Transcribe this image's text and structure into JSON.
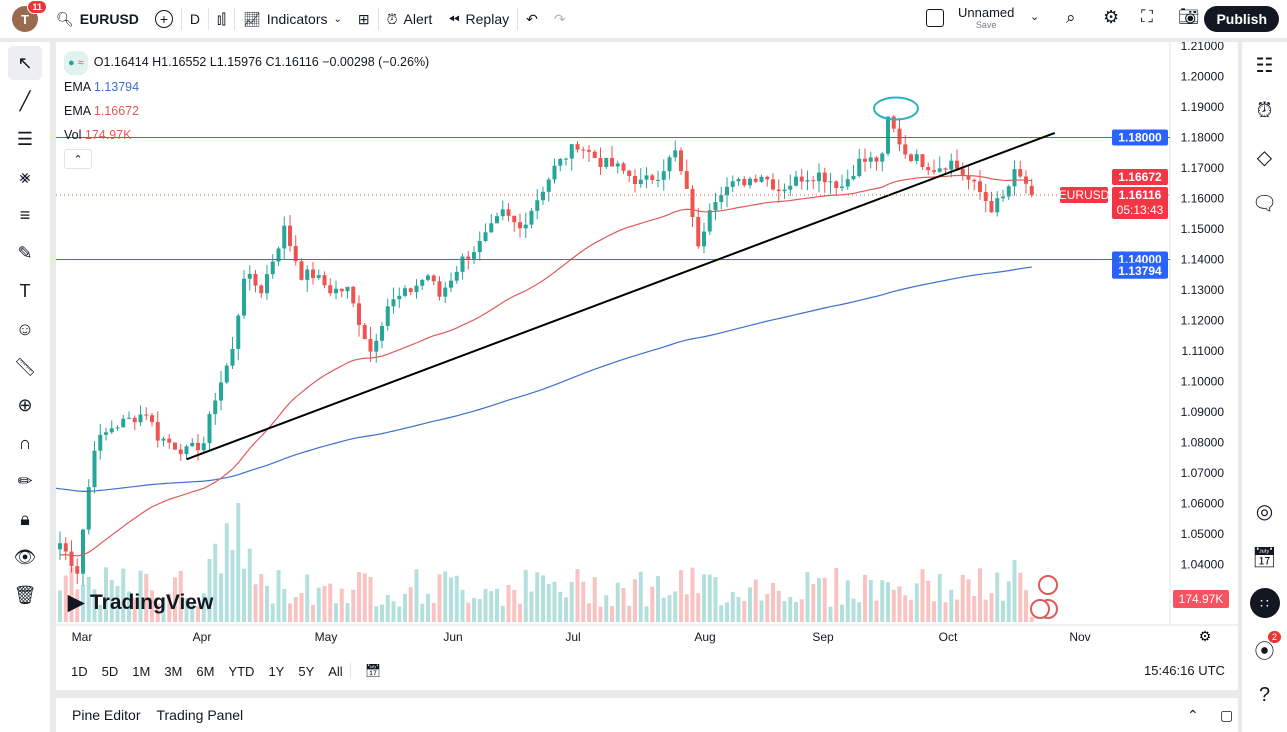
{
  "topbar": {
    "notifications": "11",
    "avatar_letter": "T",
    "symbol": "EURUSD",
    "interval": "D",
    "indicators": "Indicators",
    "alert": "Alert",
    "replay": "Replay",
    "layout_name": "Unnamed",
    "layout_save": "Save",
    "publish": "Publish"
  },
  "legend": {
    "ohlc": "O1.16414 H1.16552 L1.15976 C1.16116 −0.00298 (−0.26%)",
    "ema1_label": "EMA",
    "ema1_value": "1.13794",
    "ema2_label": "EMA",
    "ema2_value": "1.16672",
    "vol_label": "Vol",
    "vol_value": "174.97K"
  },
  "colors": {
    "up": "#26a69a",
    "down": "#ef5350",
    "ema_fast": "#e05a5a",
    "ema_slow": "#3d6fd1",
    "hline": "#3d6fd1",
    "accent": "#2962ff"
  },
  "chart_data": {
    "type": "candlestick",
    "symbol": "EURUSD",
    "y_ticks": [
      "1.21000",
      "1.20000",
      "1.19000",
      "1.18000",
      "1.17000",
      "1.16000",
      "1.15000",
      "1.14000",
      "1.13000",
      "1.12000",
      "1.11000",
      "1.10000",
      "1.09000",
      "1.08000",
      "1.07000",
      "1.06000",
      "1.05000",
      "1.04000"
    ],
    "ylim": [
      1.0275,
      1.212
    ],
    "x_ticks": [
      "Mar",
      "Apr",
      "May",
      "Jun",
      "Jul",
      "Aug",
      "Sep",
      "Oct",
      "Nov"
    ],
    "close_path_approx": [
      [
        0,
        1.047
      ],
      [
        3,
        1.038
      ],
      [
        6,
        1.079
      ],
      [
        9,
        1.085
      ],
      [
        15,
        1.09
      ],
      [
        17,
        1.082
      ],
      [
        22,
        1.077
      ],
      [
        25,
        1.08
      ],
      [
        27,
        1.095
      ],
      [
        30,
        1.11
      ],
      [
        32,
        1.135
      ],
      [
        35,
        1.13
      ],
      [
        39,
        1.15
      ],
      [
        42,
        1.135
      ],
      [
        44,
        1.135
      ],
      [
        47,
        1.13
      ],
      [
        50,
        1.13
      ],
      [
        52,
        1.12
      ],
      [
        54,
        1.11
      ],
      [
        57,
        1.125
      ],
      [
        61,
        1.13
      ],
      [
        64,
        1.135
      ],
      [
        66,
        1.128
      ],
      [
        70,
        1.14
      ],
      [
        73,
        1.145
      ],
      [
        77,
        1.155
      ],
      [
        80,
        1.15
      ],
      [
        83,
        1.16
      ],
      [
        86,
        1.17
      ],
      [
        90,
        1.178
      ],
      [
        94,
        1.172
      ],
      [
        97,
        1.17
      ],
      [
        101,
        1.165
      ],
      [
        104,
        1.168
      ],
      [
        107,
        1.175
      ],
      [
        110,
        1.155
      ],
      [
        111,
        1.143
      ],
      [
        113,
        1.158
      ],
      [
        115,
        1.163
      ],
      [
        118,
        1.165
      ],
      [
        122,
        1.168
      ],
      [
        125,
        1.163
      ],
      [
        129,
        1.167
      ],
      [
        132,
        1.168
      ],
      [
        136,
        1.164
      ],
      [
        139,
        1.172
      ],
      [
        143,
        1.173
      ],
      [
        144,
        1.186
      ],
      [
        147,
        1.175
      ],
      [
        150,
        1.172
      ],
      [
        152,
        1.17
      ],
      [
        155,
        1.172
      ],
      [
        157,
        1.168
      ],
      [
        160,
        1.162
      ],
      [
        162,
        1.157
      ],
      [
        164,
        1.16
      ],
      [
        166,
        1.168
      ],
      [
        168,
        1.165
      ],
      [
        169,
        1.16116
      ]
    ],
    "horizontal_levels": [
      {
        "price": 1.18,
        "label": "1.18000"
      },
      {
        "price": 1.14,
        "label": "1.14000"
      }
    ],
    "price_tags": {
      "ema_fast": "1.16672",
      "last": "1.16116",
      "countdown": "05:13:43",
      "ema_slow": "1.13794",
      "symbol": "EURUSD",
      "volume": "174.97K"
    },
    "trendline": [
      [
        22,
        1.0745
      ],
      [
        173,
        1.1815
      ]
    ],
    "circled_high": 1.1895
  },
  "watermark": "TradingView",
  "ranges": [
    "1D",
    "5D",
    "1M",
    "3M",
    "6M",
    "YTD",
    "1Y",
    "5Y",
    "All"
  ],
  "clock": "15:46:16 UTC",
  "bottom": {
    "pine": "Pine Editor",
    "panel": "Trading Panel"
  },
  "right": {
    "broadcast_badge": "2"
  }
}
